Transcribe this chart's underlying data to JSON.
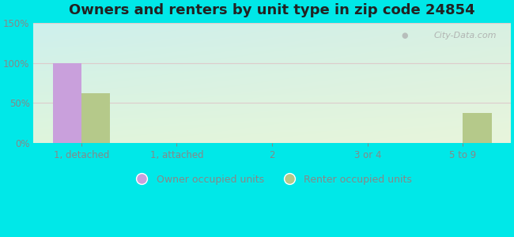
{
  "title": "Owners and renters by unit type in zip code 24854",
  "categories": [
    "1, detached",
    "1, attached",
    "2",
    "3 or 4",
    "5 to 9"
  ],
  "owner_values": [
    100,
    0,
    0,
    0,
    0
  ],
  "renter_values": [
    62,
    0,
    0,
    0,
    38
  ],
  "owner_color": "#c9a0dc",
  "renter_color": "#b5c98a",
  "ylim": [
    0,
    150
  ],
  "yticks": [
    0,
    50,
    100,
    150
  ],
  "ytick_labels": [
    "0%",
    "50%",
    "100%",
    "150%"
  ],
  "bg_top_left": "#c8f0ee",
  "bg_top_right": "#d8f0e8",
  "bg_bottom_left": "#e0f5e0",
  "bg_bottom_right": "#e8f5e0",
  "outer_bg": "#00e8e8",
  "bar_width": 0.3,
  "title_fontsize": 13,
  "tick_fontsize": 8.5,
  "legend_fontsize": 9,
  "watermark": "City-Data.com",
  "watermark_color": "#aaaaaa",
  "tick_color": "#888888",
  "grid_color": "#ddcccc"
}
